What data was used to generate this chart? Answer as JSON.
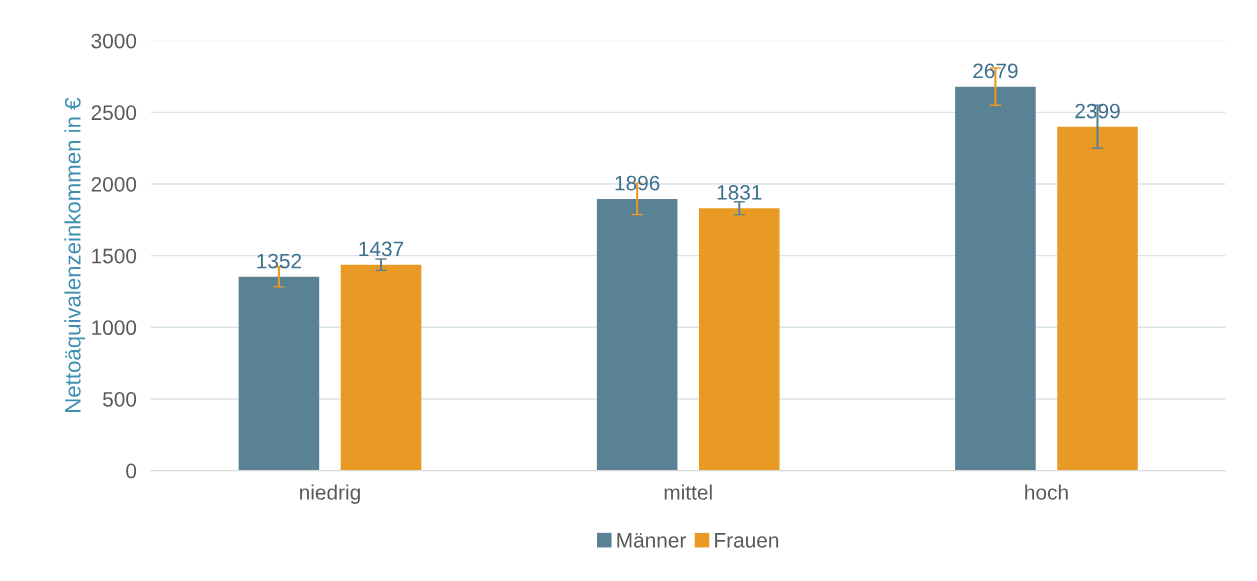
{
  "chart_data": {
    "type": "bar",
    "ylabel": "Nettoäquivalenzeinkommen in €",
    "categories": [
      "niedrig",
      "mittel",
      "hoch"
    ],
    "series": [
      {
        "name": "Männer",
        "color": "#5a8295",
        "values": [
          1352,
          1896,
          2679
        ],
        "errors": [
          70,
          110,
          130
        ]
      },
      {
        "name": "Frauen",
        "color": "#e99a24",
        "values": [
          1437,
          1831,
          2399
        ],
        "errors": [
          40,
          45,
          150
        ]
      }
    ],
    "ylim": [
      0,
      3000
    ],
    "yticks": [
      0,
      500,
      1000,
      1500,
      2000,
      2500,
      3000
    ],
    "grid": "y",
    "legend": "bottom",
    "data_labels": true
  }
}
